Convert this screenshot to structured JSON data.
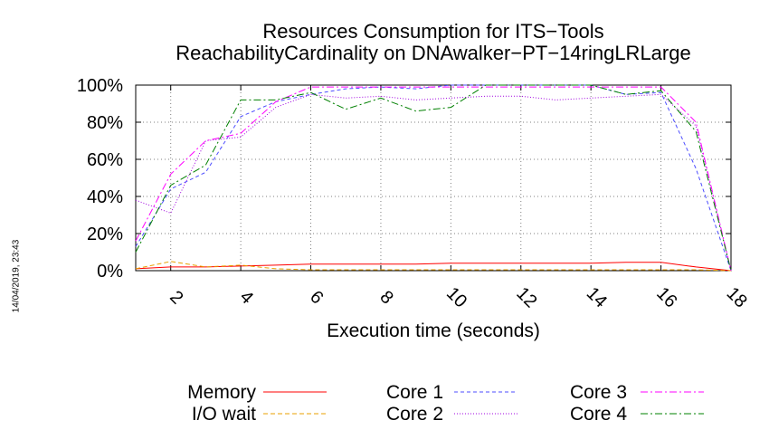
{
  "chart_data": {
    "type": "line",
    "title": [
      "Resources Consumption for ITS−Tools",
      "ReachabilityCardinality on DNAwalker−PT−14ringLRLarge"
    ],
    "xlabel": "Execution time (seconds)",
    "ylabel": "",
    "xlim": [
      1,
      18
    ],
    "ylim": [
      0,
      100
    ],
    "xticks": [
      2,
      4,
      6,
      8,
      10,
      12,
      14,
      16,
      18
    ],
    "yticks": [
      0,
      20,
      40,
      60,
      80,
      100
    ],
    "ytick_labels": [
      "0%",
      "20%",
      "40%",
      "60%",
      "80%",
      "100%"
    ],
    "grid": true,
    "legend_position": "bottom",
    "x": [
      1,
      2,
      3,
      4,
      5,
      6,
      7,
      8,
      9,
      10,
      11,
      12,
      13,
      14,
      15,
      16,
      17,
      18
    ],
    "series": [
      {
        "name": "Memory",
        "color": "#ff0000",
        "dash": "",
        "values": [
          1,
          2,
          2,
          2.5,
          3,
          3.5,
          3.5,
          3.5,
          3.5,
          4,
          4,
          4,
          4,
          4,
          4.5,
          4.5,
          2,
          0
        ]
      },
      {
        "name": "I/O wait",
        "color": "#e8a000",
        "dash": "5,3",
        "values": [
          1,
          5,
          2,
          3,
          1,
          0.5,
          0.5,
          0.5,
          0.5,
          0.5,
          0.5,
          0.5,
          0.5,
          0.5,
          0.5,
          0.5,
          0.5,
          0
        ]
      },
      {
        "name": "Core 1",
        "color": "#4d4dff",
        "dash": "4,3",
        "values": [
          13,
          44,
          53,
          83,
          91,
          95,
          98,
          99,
          98,
          100,
          100,
          100,
          100,
          100,
          95,
          96,
          55,
          0
        ]
      },
      {
        "name": "Core 2",
        "color": "#a000e0",
        "dash": "1,2",
        "values": [
          38,
          31,
          70,
          72,
          88,
          95,
          93,
          94,
          92,
          93,
          94,
          94,
          92,
          93,
          94,
          95,
          78,
          0
        ]
      },
      {
        "name": "Core 3",
        "color": "#ff00ff",
        "dash": "8,3,2,3",
        "values": [
          16,
          52,
          70,
          74,
          91,
          99,
          99,
          99,
          99,
          99,
          99,
          99,
          99,
          99,
          99,
          99,
          80,
          0
        ]
      },
      {
        "name": "Core 4",
        "color": "#008000",
        "dash": "8,3,2,3",
        "values": [
          10,
          46,
          57,
          92,
          92,
          96,
          87,
          93,
          86,
          88,
          100,
          100,
          100,
          100,
          95,
          97,
          75,
          0
        ]
      }
    ]
  },
  "timestamp": "14/04/2019, 23:43"
}
